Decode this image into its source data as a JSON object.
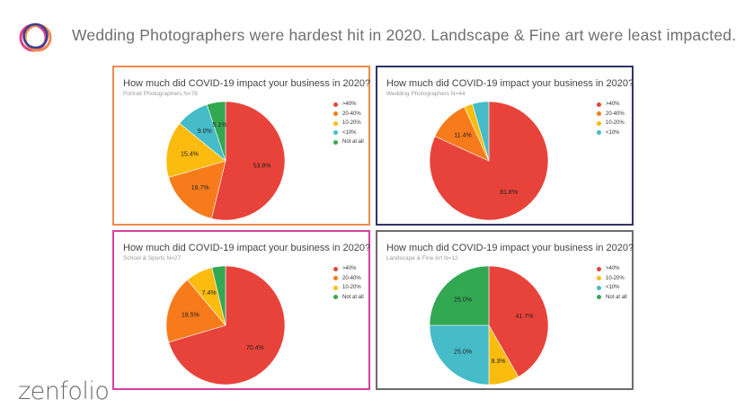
{
  "headline": "Wedding Photographers were hardest hit in 2020.  Landscape & Fine art were least impacted.",
  "brand": "zenfolio",
  "colors": {
    ">40%": "#e8433a",
    "20-40%": "#f77b1b",
    "10-20%": "#fbbc0f",
    "<10%": "#45bcc8",
    "Not at all": "#33a853"
  },
  "chart_data": [
    {
      "type": "pie",
      "title": "How much did COVID-19 impact your business in 2020?",
      "subtitle": "Portrait Photographers N=78",
      "border_color": "#f08a4b",
      "categories": [
        ">40%",
        "20-40%",
        "10-20%",
        "<10%",
        "Not at all"
      ],
      "values": [
        53.8,
        16.7,
        15.4,
        9.0,
        5.1
      ],
      "labels": [
        "53.8%",
        "16.7%",
        "15.4%",
        "9.0%",
        "5.1%"
      ],
      "legend": "right"
    },
    {
      "type": "pie",
      "title": "How much did COVID-19 impact your business in 2020?",
      "subtitle": "Wedding Photographers N=44",
      "border_color": "#2e3466",
      "categories": [
        ">40%",
        "20-40%",
        "10-20%",
        "<10%"
      ],
      "values": [
        81.8,
        11.4,
        2.3,
        4.5
      ],
      "labels": [
        "81.8%",
        "11.4%",
        "",
        ""
      ],
      "legend": "right"
    },
    {
      "type": "pie",
      "title": "How much did COVID-19 impact your business in 2020?",
      "subtitle": "School & Sports N=27",
      "border_color": "#d6409f",
      "categories": [
        ">40%",
        "20-40%",
        "10-20%",
        "Not at all"
      ],
      "values": [
        70.4,
        18.5,
        7.4,
        3.7
      ],
      "labels": [
        "70.4%",
        "18.5%",
        "7.4%",
        ""
      ],
      "legend": "right"
    },
    {
      "type": "pie",
      "title": "How much did COVID-19 impact your business in 2020?",
      "subtitle": "Landscape & Fine Art N=12",
      "border_color": "#6b6b6b",
      "categories": [
        ">40%",
        "10-20%",
        "<10%",
        "Not at all"
      ],
      "values": [
        41.7,
        8.3,
        25.0,
        25.0
      ],
      "labels": [
        "41.7%",
        "8.3%",
        "25.0%",
        "25.0%"
      ],
      "legend": "right"
    }
  ]
}
